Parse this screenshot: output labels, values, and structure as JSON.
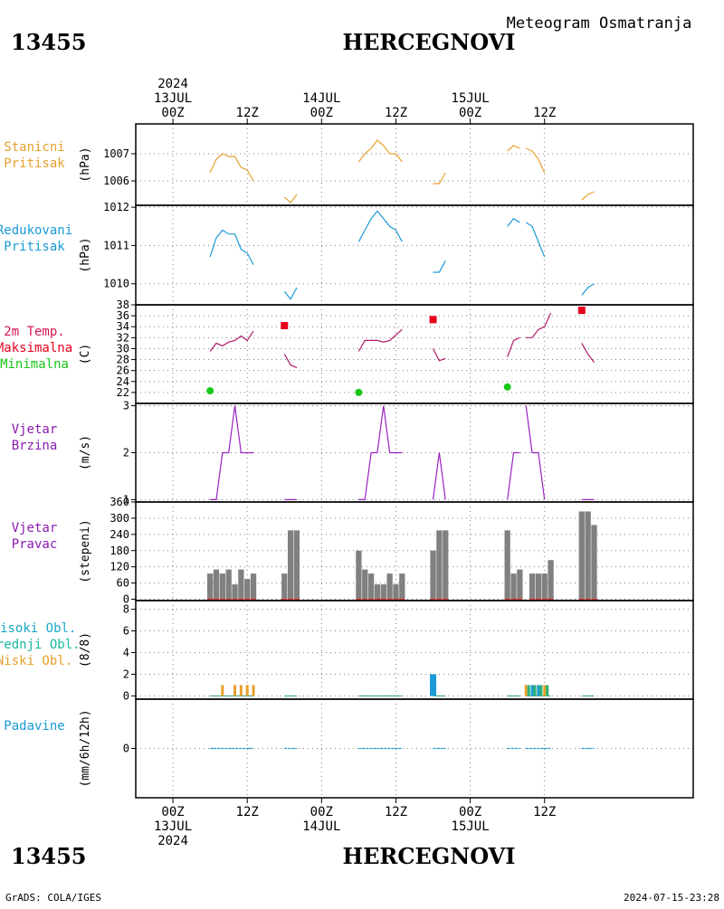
{
  "header": {
    "station_id": "13455",
    "station_name": "HERCEGNOVI",
    "product": "Meteogram Osmatranja"
  },
  "footer": {
    "station_id": "13455",
    "station_name": "HERCEGNOVI",
    "software": "GrADS: COLA/IGES",
    "generated": "2024-07-15-23:28"
  },
  "time_axis": {
    "unit": "hours since 2024-07-13 00Z",
    "range": [
      -6,
      84
    ],
    "top_ticks": [
      {
        "t": 0,
        "lines": [
          "2024",
          "13JUL",
          "00Z"
        ]
      },
      {
        "t": 12,
        "lines": [
          "12Z"
        ]
      },
      {
        "t": 24,
        "lines": [
          "14JUL",
          "00Z"
        ]
      },
      {
        "t": 36,
        "lines": [
          "12Z"
        ]
      },
      {
        "t": 48,
        "lines": [
          "15JUL",
          "00Z"
        ]
      },
      {
        "t": 60,
        "lines": [
          "12Z"
        ]
      }
    ],
    "bottom_ticks": [
      {
        "t": 0,
        "lines": [
          "00Z",
          "13JUL",
          "2024"
        ]
      },
      {
        "t": 12,
        "lines": [
          "12Z"
        ]
      },
      {
        "t": 24,
        "lines": [
          "00Z",
          "14JUL"
        ]
      },
      {
        "t": 36,
        "lines": [
          "12Z"
        ]
      },
      {
        "t": 48,
        "lines": [
          "00Z",
          "15JUL"
        ]
      },
      {
        "t": 60,
        "lines": [
          "12Z"
        ]
      }
    ]
  },
  "chart_data": [
    {
      "id": "station-pressure",
      "type": "line",
      "labels": [
        "Stanicni",
        "Pritisak"
      ],
      "label_colors": [
        "#e6a02c"
      ],
      "ylabel": "(hPa)",
      "ylim": [
        1005.1,
        1008.1
      ],
      "yticks": [
        1006,
        1007
      ],
      "series": [
        {
          "color": "#e6a02c",
          "segments": [
            [
              [
                6,
                1006.3
              ],
              [
                7,
                1006.8
              ],
              [
                8,
                1007.0
              ],
              [
                9,
                1006.9
              ],
              [
                10,
                1006.9
              ],
              [
                11,
                1006.5
              ],
              [
                12,
                1006.4
              ],
              [
                13,
                1006.0
              ]
            ],
            [
              [
                18,
                1005.4
              ],
              [
                19,
                1005.2
              ],
              [
                20,
                1005.5
              ]
            ],
            [
              [
                30,
                1006.7
              ],
              [
                31,
                1007.0
              ],
              [
                32,
                1007.2
              ],
              [
                33,
                1007.5
              ],
              [
                34,
                1007.3
              ],
              [
                35,
                1007.0
              ],
              [
                36,
                1007.0
              ],
              [
                37,
                1006.7
              ]
            ],
            [
              [
                42,
                1005.9
              ],
              [
                43,
                1005.9
              ],
              [
                44,
                1006.3
              ]
            ],
            [
              [
                54,
                1007.1
              ],
              [
                55,
                1007.3
              ],
              [
                56,
                1007.2
              ]
            ],
            [
              [
                57,
                1007.2
              ],
              [
                58,
                1007.1
              ],
              [
                59,
                1006.8
              ],
              [
                60,
                1006.3
              ]
            ],
            [
              [
                66,
                1005.3
              ],
              [
                67,
                1005.5
              ],
              [
                68,
                1005.6
              ]
            ]
          ]
        }
      ]
    },
    {
      "id": "reduced-pressure",
      "type": "line",
      "labels": [
        "Redukovani",
        "Pritisak"
      ],
      "label_colors": [
        "#1a9ad6"
      ],
      "ylabel": "(hPa)",
      "ylim": [
        1009.45,
        1012.05
      ],
      "yticks": [
        1010,
        1011,
        1012
      ],
      "series": [
        {
          "color": "#1a9ad6",
          "segments": [
            [
              [
                6,
                1010.7
              ],
              [
                7,
                1011.2
              ],
              [
                8,
                1011.4
              ],
              [
                9,
                1011.3
              ],
              [
                10,
                1011.3
              ],
              [
                11,
                1010.9
              ],
              [
                12,
                1010.8
              ],
              [
                13,
                1010.5
              ]
            ],
            [
              [
                18,
                1009.8
              ],
              [
                19,
                1009.6
              ],
              [
                20,
                1009.9
              ]
            ],
            [
              [
                30,
                1011.1
              ],
              [
                31,
                1011.4
              ],
              [
                32,
                1011.7
              ],
              [
                33,
                1011.9
              ],
              [
                34,
                1011.7
              ],
              [
                35,
                1011.5
              ],
              [
                36,
                1011.4
              ],
              [
                37,
                1011.1
              ]
            ],
            [
              [
                42,
                1010.3
              ],
              [
                43,
                1010.3
              ],
              [
                44,
                1010.6
              ]
            ],
            [
              [
                54,
                1011.5
              ],
              [
                55,
                1011.7
              ],
              [
                56,
                1011.6
              ]
            ],
            [
              [
                57,
                1011.6
              ],
              [
                58,
                1011.5
              ],
              [
                59,
                1011.1
              ],
              [
                60,
                1010.7
              ]
            ],
            [
              [
                66,
                1009.7
              ],
              [
                67,
                1009.9
              ],
              [
                68,
                1010.0
              ]
            ]
          ]
        }
      ]
    },
    {
      "id": "temperature",
      "type": "line",
      "labels": [
        "2m Temp.",
        "Maksimalna",
        "Minimalna"
      ],
      "label_colors": [
        "#d01850",
        "#e8001c",
        "#18c818"
      ],
      "ylabel": "(C)",
      "ylim": [
        20,
        38
      ],
      "yticks": [
        22,
        24,
        26,
        28,
        30,
        32,
        34,
        36,
        38
      ],
      "series": [
        {
          "color": "#b01a6a",
          "segments": [
            [
              [
                6,
                29.5
              ],
              [
                7,
                31.0
              ],
              [
                8,
                30.5
              ],
              [
                9,
                31.2
              ],
              [
                10,
                31.5
              ],
              [
                11,
                32.3
              ],
              [
                12,
                31.5
              ],
              [
                13,
                33.2
              ]
            ],
            [
              [
                18,
                29.0
              ],
              [
                19,
                27.0
              ],
              [
                20,
                26.5
              ]
            ],
            [
              [
                30,
                29.5
              ],
              [
                31,
                31.5
              ],
              [
                32,
                31.5
              ],
              [
                33,
                31.5
              ],
              [
                34,
                31.2
              ],
              [
                35,
                31.5
              ],
              [
                36,
                32.5
              ],
              [
                37,
                33.5
              ]
            ],
            [
              [
                42,
                30.0
              ],
              [
                43,
                27.8
              ],
              [
                44,
                28.2
              ]
            ],
            [
              [
                54,
                28.5
              ],
              [
                55,
                31.5
              ],
              [
                56,
                32.0
              ]
            ],
            [
              [
                57,
                32.0
              ],
              [
                58,
                32.0
              ],
              [
                59,
                33.5
              ],
              [
                60,
                34.0
              ],
              [
                61,
                36.5
              ]
            ],
            [
              [
                66,
                31.0
              ],
              [
                67,
                29.0
              ],
              [
                68,
                27.5
              ]
            ]
          ]
        }
      ],
      "max_points": [
        [
          18,
          34.2
        ],
        [
          42,
          35.3
        ],
        [
          66,
          37.0
        ]
      ],
      "min_points": [
        [
          6,
          22.3
        ],
        [
          30,
          22.0
        ],
        [
          54,
          23.0
        ]
      ]
    },
    {
      "id": "wind-speed",
      "type": "line",
      "labels": [
        "Vjetar",
        "Brzina"
      ],
      "label_colors": [
        "#8a1ab0"
      ],
      "ylabel": "(m/s)",
      "ylim": [
        0.95,
        3.05
      ],
      "yticks": [
        1,
        2,
        3
      ],
      "series": [
        {
          "color": "#9a22c0",
          "segments": [
            [
              [
                6,
                1
              ],
              [
                7,
                1
              ],
              [
                8,
                2
              ],
              [
                9,
                2
              ],
              [
                10,
                3
              ],
              [
                11,
                2
              ],
              [
                12,
                2
              ],
              [
                13,
                2
              ]
            ],
            [
              [
                18,
                1
              ],
              [
                19,
                1
              ],
              [
                20,
                1
              ]
            ],
            [
              [
                30,
                1
              ],
              [
                31,
                1
              ],
              [
                32,
                2
              ],
              [
                33,
                2
              ],
              [
                34,
                3
              ],
              [
                35,
                2
              ],
              [
                36,
                2
              ],
              [
                37,
                2
              ]
            ],
            [
              [
                42,
                1
              ],
              [
                43,
                2
              ],
              [
                44,
                1
              ]
            ],
            [
              [
                54,
                1
              ],
              [
                55,
                2
              ],
              [
                56,
                2
              ]
            ],
            [
              [
                57,
                3
              ],
              [
                58,
                2
              ],
              [
                59,
                2
              ],
              [
                60,
                1
              ]
            ],
            [
              [
                66,
                1
              ],
              [
                67,
                1
              ],
              [
                68,
                1
              ]
            ]
          ]
        }
      ]
    },
    {
      "id": "wind-direction",
      "type": "bar",
      "labels": [
        "Vjetar",
        "Pravac"
      ],
      "label_colors": [
        "#8a1ab0"
      ],
      "ylabel": "(stepeni)",
      "ylim": [
        -5,
        360
      ],
      "yticks": [
        0,
        60,
        120,
        180,
        240,
        300,
        360
      ],
      "ytick_labels": [
        "0",
        "60",
        "120",
        "180",
        "240",
        "300",
        "360"
      ],
      "bar_color": "#808080",
      "calm_color": "#d8403a",
      "bars": [
        [
          6,
          95
        ],
        [
          7,
          110
        ],
        [
          8,
          95
        ],
        [
          9,
          110
        ],
        [
          10,
          55
        ],
        [
          11,
          110
        ],
        [
          12,
          75
        ],
        [
          13,
          95
        ],
        [
          18,
          95
        ],
        [
          19,
          255
        ],
        [
          20,
          255
        ],
        [
          30,
          180
        ],
        [
          31,
          110
        ],
        [
          32,
          95
        ],
        [
          33,
          55
        ],
        [
          34,
          55
        ],
        [
          35,
          95
        ],
        [
          36,
          55
        ],
        [
          37,
          95
        ],
        [
          42,
          180
        ],
        [
          43,
          255
        ],
        [
          44,
          255
        ],
        [
          54,
          255
        ],
        [
          55,
          95
        ],
        [
          56,
          110
        ],
        [
          58,
          95
        ],
        [
          59,
          95
        ],
        [
          60,
          95
        ],
        [
          61,
          145
        ],
        [
          66,
          325
        ],
        [
          67,
          325
        ],
        [
          68,
          275
        ]
      ]
    },
    {
      "id": "clouds",
      "type": "bar",
      "labels": [
        "Visoki Obl.",
        "Srednji Obl.",
        "Niski Obl."
      ],
      "label_colors": [
        "#18a8c8",
        "#18b8a0",
        "#e6a02c"
      ],
      "ylabel": "(8/8)",
      "ylim": [
        -0.3,
        8.8
      ],
      "yticks": [
        0,
        2,
        4,
        6,
        8
      ],
      "low": [
        [
          8,
          1
        ],
        [
          10,
          1
        ],
        [
          11,
          1
        ],
        [
          12,
          1
        ],
        [
          13,
          1
        ],
        [
          57,
          1
        ],
        [
          58,
          1
        ],
        [
          59,
          1
        ],
        [
          60,
          1
        ]
      ],
      "mid": [
        [
          57,
          1
        ],
        [
          58,
          1
        ],
        [
          59,
          1
        ],
        [
          60,
          1
        ]
      ],
      "high": [
        [
          42,
          2
        ],
        [
          58,
          1
        ],
        [
          59,
          1
        ]
      ],
      "colors": {
        "low": "#e6a02c",
        "mid": "#28b070",
        "high": "#1a9ad6",
        "trace": "#28a070"
      },
      "trace_segments": [
        [
          6,
          13
        ],
        [
          18,
          20
        ],
        [
          30,
          37
        ],
        [
          42,
          44
        ],
        [
          54,
          56
        ],
        [
          57,
          61
        ],
        [
          66,
          68
        ]
      ]
    },
    {
      "id": "precipitation",
      "type": "bar",
      "labels": [
        "Padavine"
      ],
      "label_colors": [
        "#1a9ad6"
      ],
      "ylabel": "(mm/6h/12h)",
      "ylim": [
        -1,
        1
      ],
      "yticks": [
        0
      ],
      "colors": {
        "trace": "#1a9ad6"
      },
      "trace_segments": [
        [
          6,
          13
        ],
        [
          18,
          20
        ],
        [
          30,
          37
        ],
        [
          42,
          44
        ],
        [
          54,
          56
        ],
        [
          57,
          61
        ],
        [
          66,
          68
        ]
      ]
    }
  ]
}
